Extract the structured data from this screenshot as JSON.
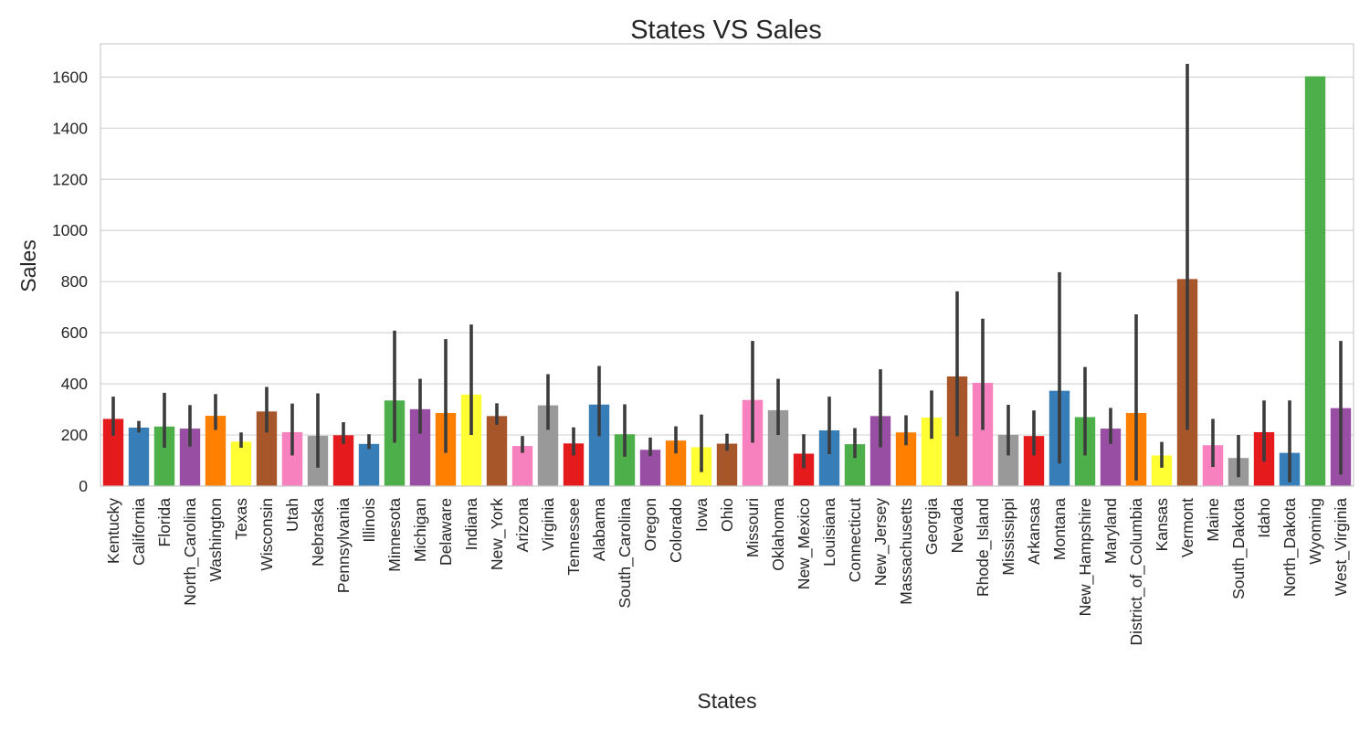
{
  "chart_data": {
    "type": "bar",
    "title": "States VS Sales",
    "xlabel": "States",
    "ylabel": "Sales",
    "ylim": [
      0,
      1730
    ],
    "yticks": [
      0,
      200,
      400,
      600,
      800,
      1000,
      1200,
      1400,
      1600
    ],
    "grid": true,
    "palette": [
      "#e41a1c",
      "#377eb8",
      "#4daf4a",
      "#984ea3",
      "#ff7f00",
      "#ffff33",
      "#a65628",
      "#f781bf",
      "#999999"
    ],
    "categories": [
      "Kentucky",
      "California",
      "Florida",
      "North_Carolina",
      "Washington",
      "Texas",
      "Wisconsin",
      "Utah",
      "Nebraska",
      "Pennsylvania",
      "Illinois",
      "Minnesota",
      "Michigan",
      "Delaware",
      "Indiana",
      "New_York",
      "Arizona",
      "Virginia",
      "Tennessee",
      "Alabama",
      "South_Carolina",
      "Oregon",
      "Colorado",
      "Iowa",
      "Ohio",
      "Missouri",
      "Oklahoma",
      "New_Mexico",
      "Louisiana",
      "Connecticut",
      "New_Jersey",
      "Massachusetts",
      "Georgia",
      "Nevada",
      "Rhode_Island",
      "Mississippi",
      "Arkansas",
      "Montana",
      "New_Hampshire",
      "Maryland",
      "District_of_Columbia",
      "Kansas",
      "Vermont",
      "Maine",
      "South_Dakota",
      "Idaho",
      "North_Dakota",
      "Wyoming",
      "West_Virginia"
    ],
    "values": [
      263,
      229,
      233,
      225,
      275,
      174,
      292,
      211,
      197,
      199,
      165,
      335,
      301,
      286,
      358,
      274,
      157,
      316,
      167,
      319,
      203,
      142,
      178,
      152,
      166,
      337,
      297,
      127,
      218,
      164,
      274,
      210,
      268,
      429,
      404,
      201,
      196,
      373,
      270,
      225,
      286,
      120,
      810,
      160,
      110,
      211,
      130,
      1603,
      305
    ],
    "error_low": [
      197,
      210,
      150,
      155,
      220,
      150,
      210,
      120,
      72,
      165,
      145,
      170,
      205,
      130,
      200,
      240,
      130,
      220,
      120,
      195,
      115,
      118,
      128,
      55,
      138,
      170,
      200,
      70,
      125,
      110,
      152,
      160,
      185,
      195,
      220,
      120,
      120,
      88,
      120,
      165,
      22,
      72,
      220,
      75,
      35,
      95,
      15,
      1603,
      45
    ],
    "error_high": [
      350,
      255,
      365,
      317,
      360,
      210,
      388,
      323,
      363,
      250,
      203,
      608,
      420,
      575,
      632,
      324,
      196,
      438,
      230,
      470,
      320,
      190,
      234,
      280,
      205,
      568,
      420,
      203,
      350,
      227,
      457,
      277,
      374,
      762,
      655,
      318,
      296,
      837,
      466,
      306,
      672,
      173,
      1652,
      263,
      200,
      335,
      335,
      1603,
      568
    ]
  }
}
